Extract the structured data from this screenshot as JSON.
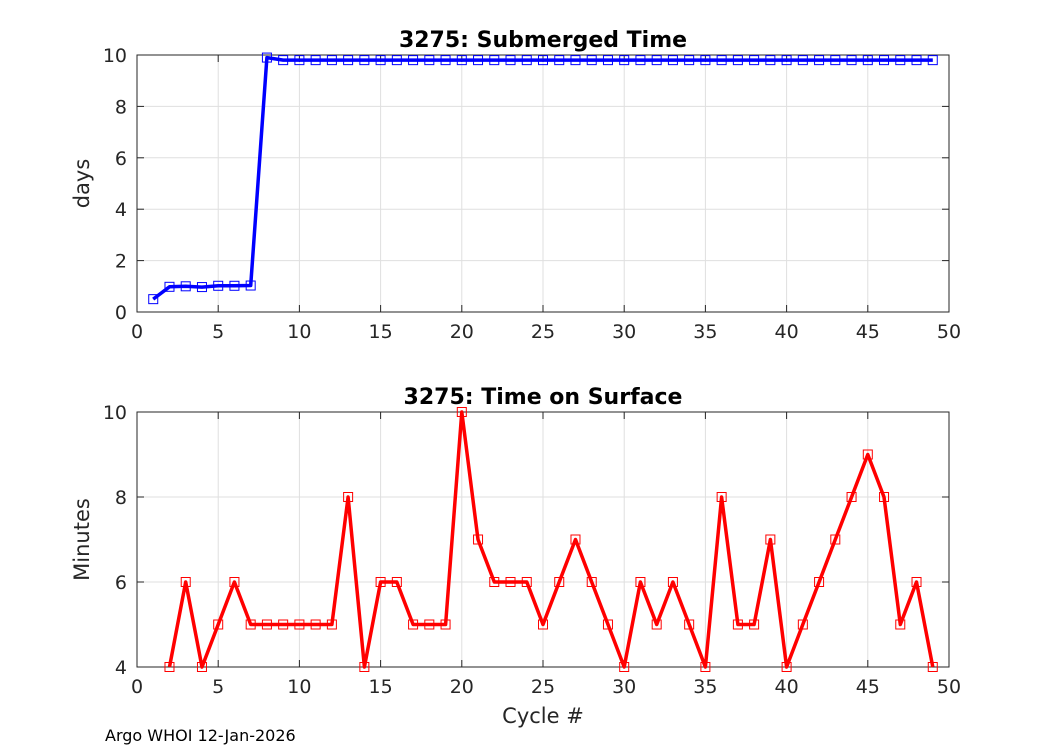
{
  "chart_data": [
    {
      "type": "line",
      "title": "3275: Submerged Time",
      "xlabel": "",
      "ylabel": "days",
      "xlim": [
        0,
        50
      ],
      "ylim": [
        0,
        10
      ],
      "xticks": [
        0,
        5,
        10,
        15,
        20,
        25,
        30,
        35,
        40,
        45,
        50
      ],
      "yticks": [
        0,
        2,
        4,
        6,
        8,
        10
      ],
      "grid": true,
      "color": "#0000ff",
      "marker": "square",
      "series": [
        {
          "name": "Submerged Time",
          "x": [
            1,
            2,
            3,
            4,
            5,
            6,
            7,
            8,
            9,
            10,
            11,
            12,
            13,
            14,
            15,
            16,
            17,
            18,
            19,
            20,
            21,
            22,
            23,
            24,
            25,
            26,
            27,
            28,
            29,
            30,
            31,
            32,
            33,
            34,
            35,
            36,
            37,
            38,
            39,
            40,
            41,
            42,
            43,
            44,
            45,
            46,
            47,
            48,
            49
          ],
          "y": [
            0.5,
            0.98,
            1.0,
            0.97,
            1.02,
            1.02,
            1.03,
            9.9,
            9.8,
            9.8,
            9.8,
            9.8,
            9.8,
            9.8,
            9.8,
            9.8,
            9.8,
            9.8,
            9.8,
            9.8,
            9.8,
            9.8,
            9.8,
            9.8,
            9.8,
            9.8,
            9.8,
            9.8,
            9.8,
            9.8,
            9.8,
            9.8,
            9.8,
            9.8,
            9.8,
            9.8,
            9.8,
            9.8,
            9.8,
            9.8,
            9.8,
            9.8,
            9.8,
            9.8,
            9.8,
            9.8,
            9.8,
            9.8,
            9.8
          ]
        }
      ]
    },
    {
      "type": "line",
      "title": "3275: Time on Surface",
      "xlabel": "Cycle #",
      "ylabel": "Minutes",
      "xlim": [
        0,
        50
      ],
      "ylim": [
        4,
        10
      ],
      "xticks": [
        0,
        5,
        10,
        15,
        20,
        25,
        30,
        35,
        40,
        45,
        50
      ],
      "yticks": [
        4,
        6,
        8,
        10
      ],
      "grid": true,
      "color": "#ff0000",
      "marker": "square",
      "series": [
        {
          "name": "Time on Surface",
          "x": [
            2,
            3,
            4,
            5,
            6,
            7,
            8,
            9,
            10,
            11,
            12,
            13,
            14,
            15,
            16,
            17,
            18,
            19,
            20,
            21,
            22,
            23,
            24,
            25,
            26,
            27,
            28,
            29,
            30,
            31,
            32,
            33,
            34,
            35,
            36,
            37,
            38,
            39,
            40,
            41,
            42,
            43,
            44,
            45,
            46,
            47,
            48,
            49
          ],
          "y": [
            4,
            6,
            4,
            5,
            6,
            5,
            5,
            5,
            5,
            5,
            5,
            8,
            4,
            6,
            6,
            5,
            5,
            5,
            10,
            7,
            6,
            6,
            6,
            5,
            6,
            7,
            6,
            5,
            4,
            6,
            5,
            6,
            5,
            4,
            8,
            5,
            5,
            7,
            4,
            5,
            6,
            7,
            8,
            9,
            8,
            5,
            6,
            4
          ]
        }
      ]
    }
  ],
  "footer": "Argo WHOI 12-Jan-2026"
}
